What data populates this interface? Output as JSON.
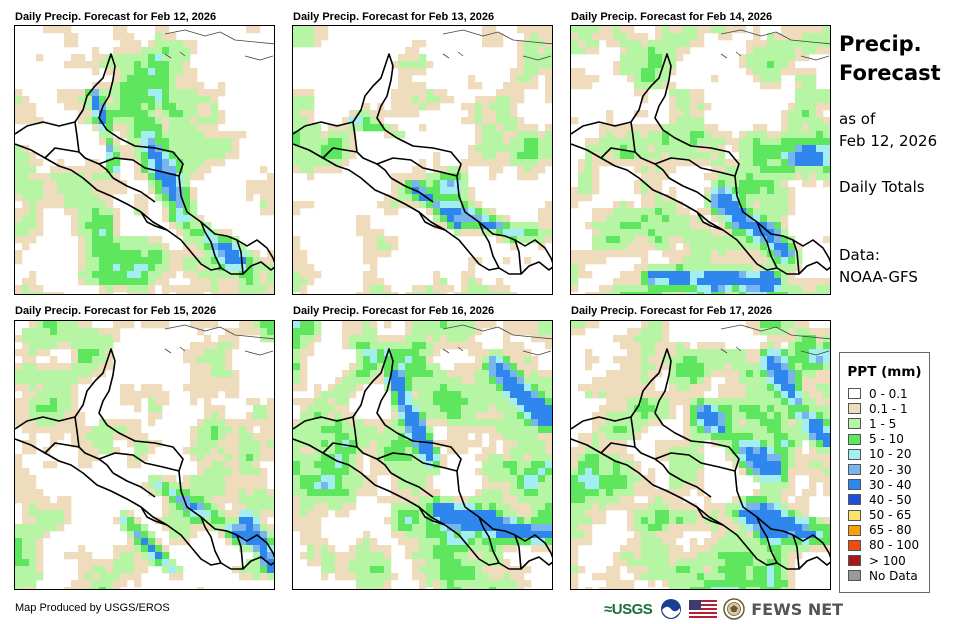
{
  "panels": [
    {
      "title": "Daily Precip. Forecast for Feb 12, 2026",
      "scene": 0
    },
    {
      "title": "Daily Precip. Forecast for Feb 13, 2026",
      "scene": 1
    },
    {
      "title": "Daily Precip. Forecast for Feb 14, 2026",
      "scene": 2
    },
    {
      "title": "Daily Precip. Forecast for Feb 15, 2026",
      "scene": 3
    },
    {
      "title": "Daily Precip. Forecast for Feb 16, 2026",
      "scene": 4
    },
    {
      "title": "Daily Precip. Forecast for Feb 17, 2026",
      "scene": 5
    }
  ],
  "side": {
    "title_line1": "Precip.",
    "title_line2": "Forecast",
    "asof_line1": "as of",
    "asof_line2": "Feb 12, 2026",
    "totals": "Daily Totals",
    "data_label": "Data:",
    "data_source": "NOAA-GFS"
  },
  "legend": {
    "title": "PPT (mm)",
    "items": [
      {
        "label": "0 - 0.1",
        "color": "#ffffff"
      },
      {
        "label": "0.1 - 1",
        "color": "#efdcbc"
      },
      {
        "label": "1 - 5",
        "color": "#b5f5a3"
      },
      {
        "label": "5 - 10",
        "color": "#5fe65f"
      },
      {
        "label": "10 - 20",
        "color": "#a3eef2"
      },
      {
        "label": "20 - 30",
        "color": "#78b4ee"
      },
      {
        "label": "30 - 40",
        "color": "#2f86ec"
      },
      {
        "label": "40 - 50",
        "color": "#1d4fd9"
      },
      {
        "label": "50 - 65",
        "color": "#fde26b"
      },
      {
        "label": "65 - 80",
        "color": "#f5a10a"
      },
      {
        "label": "80 - 100",
        "color": "#f04b0f"
      },
      {
        "label": "> 100",
        "color": "#a8191b"
      },
      {
        "label": "No Data",
        "color": "#999999"
      }
    ]
  },
  "footer": {
    "credit": "Map Produced by USGS/EROS",
    "usgs": "≈USGS",
    "fews": "FEWS NET"
  }
}
